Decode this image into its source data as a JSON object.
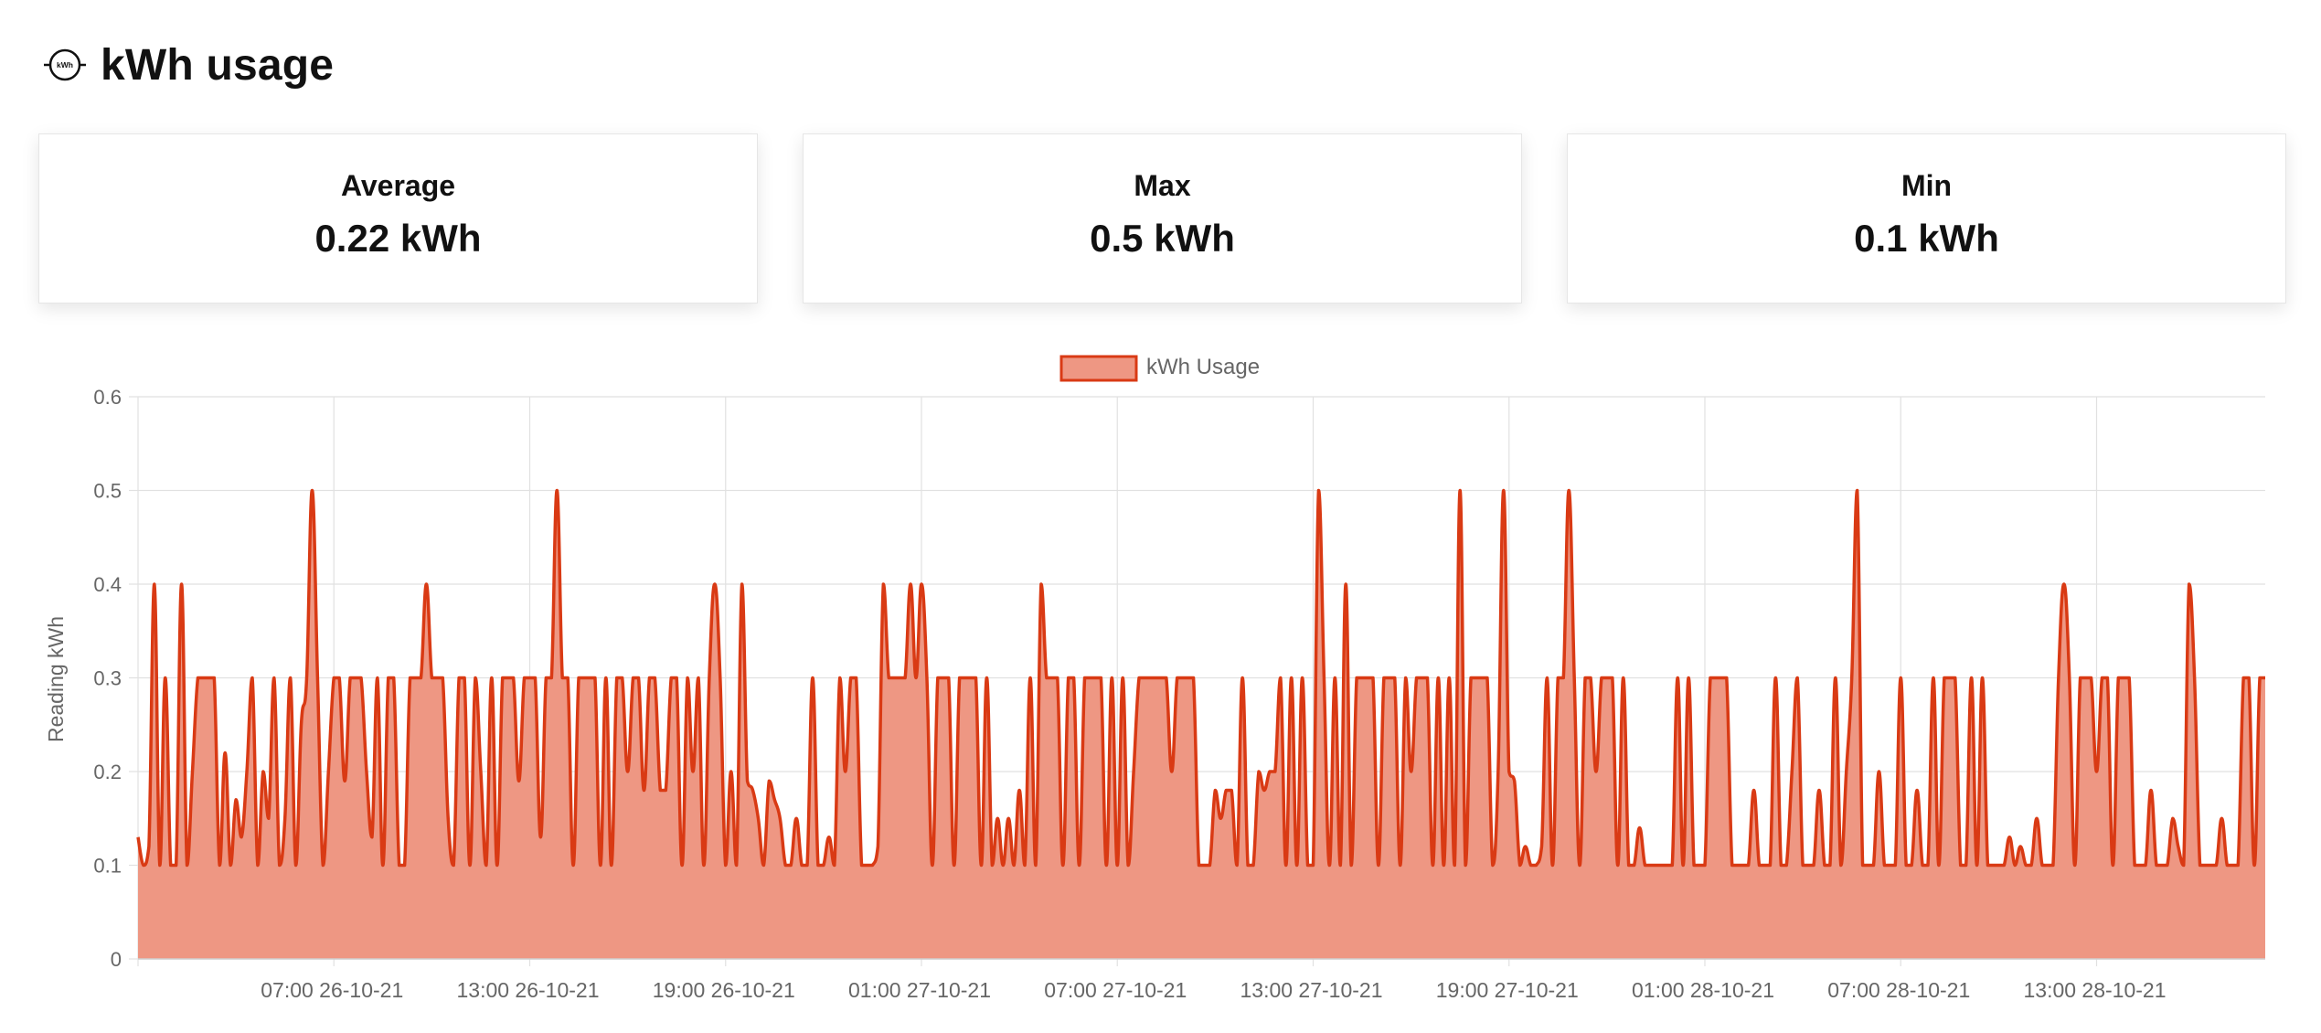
{
  "header": {
    "icon": "electric-meter-kwh-icon",
    "icon_text": "kWh",
    "title": "kWh usage"
  },
  "stats": [
    {
      "label": "Average",
      "value": "0.22 kWh"
    },
    {
      "label": "Max",
      "value": "0.5 kWh"
    },
    {
      "label": "Min",
      "value": "0.1 kWh"
    }
  ],
  "colors": {
    "line": "#d93a14",
    "fill": "#ee9783",
    "grid": "#e1e1e1",
    "text": "#666666"
  },
  "chart_data": {
    "type": "area",
    "title": "",
    "xlabel": "",
    "ylabel": "Reading kWh",
    "ylim": [
      0,
      0.6
    ],
    "yticks": [
      0,
      0.1,
      0.2,
      0.3,
      0.4,
      0.5,
      0.6
    ],
    "grid": true,
    "legend": "top-center",
    "x_start": "2021-10-26 01:00",
    "interval_minutes": 10,
    "x_tick_labels": [
      "07:00 26-10-21",
      "13:00 26-10-21",
      "19:00 26-10-21",
      "01:00 27-10-21",
      "07:00 27-10-21",
      "13:00 27-10-21",
      "19:00 27-10-21",
      "01:00 28-10-21",
      "07:00 28-10-21",
      "13:00 28-10-21"
    ],
    "series": [
      {
        "name": "kWh Usage",
        "values": [
          0.13,
          0.1,
          0.12,
          0.4,
          0.1,
          0.3,
          0.1,
          0.1,
          0.4,
          0.1,
          0.2,
          0.3,
          0.3,
          0.3,
          0.3,
          0.1,
          0.22,
          0.1,
          0.17,
          0.13,
          0.2,
          0.3,
          0.1,
          0.2,
          0.15,
          0.3,
          0.1,
          0.15,
          0.3,
          0.1,
          0.25,
          0.3,
          0.5,
          0.3,
          0.1,
          0.2,
          0.3,
          0.3,
          0.19,
          0.3,
          0.3,
          0.3,
          0.2,
          0.13,
          0.3,
          0.1,
          0.3,
          0.3,
          0.1,
          0.1,
          0.3,
          0.3,
          0.3,
          0.4,
          0.3,
          0.3,
          0.3,
          0.15,
          0.1,
          0.3,
          0.3,
          0.1,
          0.3,
          0.2,
          0.1,
          0.3,
          0.1,
          0.3,
          0.3,
          0.3,
          0.19,
          0.3,
          0.3,
          0.3,
          0.13,
          0.3,
          0.3,
          0.5,
          0.3,
          0.3,
          0.1,
          0.3,
          0.3,
          0.3,
          0.3,
          0.1,
          0.3,
          0.1,
          0.3,
          0.3,
          0.2,
          0.3,
          0.3,
          0.18,
          0.3,
          0.3,
          0.18,
          0.18,
          0.3,
          0.3,
          0.1,
          0.3,
          0.2,
          0.3,
          0.1,
          0.3,
          0.4,
          0.3,
          0.1,
          0.2,
          0.1,
          0.4,
          0.19,
          0.18,
          0.15,
          0.1,
          0.19,
          0.17,
          0.15,
          0.1,
          0.1,
          0.15,
          0.1,
          0.1,
          0.3,
          0.1,
          0.1,
          0.13,
          0.1,
          0.3,
          0.2,
          0.3,
          0.3,
          0.1,
          0.1,
          0.1,
          0.12,
          0.4,
          0.3,
          0.3,
          0.3,
          0.3,
          0.4,
          0.3,
          0.4,
          0.3,
          0.1,
          0.3,
          0.3,
          0.3,
          0.1,
          0.3,
          0.3,
          0.3,
          0.3,
          0.1,
          0.3,
          0.1,
          0.15,
          0.1,
          0.15,
          0.1,
          0.18,
          0.1,
          0.3,
          0.1,
          0.4,
          0.3,
          0.3,
          0.3,
          0.1,
          0.3,
          0.3,
          0.1,
          0.3,
          0.3,
          0.3,
          0.3,
          0.1,
          0.3,
          0.1,
          0.3,
          0.1,
          0.2,
          0.3,
          0.3,
          0.3,
          0.3,
          0.3,
          0.3,
          0.2,
          0.3,
          0.3,
          0.3,
          0.3,
          0.1,
          0.1,
          0.1,
          0.18,
          0.15,
          0.18,
          0.18,
          0.1,
          0.3,
          0.1,
          0.1,
          0.2,
          0.18,
          0.2,
          0.2,
          0.3,
          0.1,
          0.3,
          0.1,
          0.3,
          0.1,
          0.1,
          0.5,
          0.3,
          0.1,
          0.3,
          0.1,
          0.4,
          0.1,
          0.3,
          0.3,
          0.3,
          0.3,
          0.1,
          0.3,
          0.3,
          0.3,
          0.1,
          0.3,
          0.2,
          0.3,
          0.3,
          0.3,
          0.1,
          0.3,
          0.1,
          0.3,
          0.1,
          0.5,
          0.1,
          0.3,
          0.3,
          0.3,
          0.3,
          0.1,
          0.2,
          0.5,
          0.2,
          0.19,
          0.1,
          0.12,
          0.1,
          0.1,
          0.12,
          0.3,
          0.1,
          0.3,
          0.3,
          0.5,
          0.3,
          0.1,
          0.3,
          0.3,
          0.2,
          0.3,
          0.3,
          0.3,
          0.1,
          0.3,
          0.1,
          0.1,
          0.14,
          0.1,
          0.1,
          0.1,
          0.1,
          0.1,
          0.1,
          0.3,
          0.1,
          0.3,
          0.1,
          0.1,
          0.1,
          0.3,
          0.3,
          0.3,
          0.3,
          0.1,
          0.1,
          0.1,
          0.1,
          0.18,
          0.1,
          0.1,
          0.1,
          0.3,
          0.1,
          0.1,
          0.2,
          0.3,
          0.1,
          0.1,
          0.1,
          0.18,
          0.1,
          0.1,
          0.3,
          0.1,
          0.2,
          0.3,
          0.5,
          0.1,
          0.1,
          0.1,
          0.2,
          0.1,
          0.1,
          0.1,
          0.3,
          0.1,
          0.1,
          0.18,
          0.1,
          0.1,
          0.3,
          0.1,
          0.3,
          0.3,
          0.3,
          0.1,
          0.1,
          0.3,
          0.1,
          0.3,
          0.1,
          0.1,
          0.1,
          0.1,
          0.13,
          0.1,
          0.12,
          0.1,
          0.1,
          0.15,
          0.1,
          0.1,
          0.1,
          0.3,
          0.4,
          0.3,
          0.1,
          0.3,
          0.3,
          0.3,
          0.2,
          0.3,
          0.3,
          0.1,
          0.3,
          0.3,
          0.3,
          0.1,
          0.1,
          0.1,
          0.18,
          0.1,
          0.1,
          0.1,
          0.15,
          0.12,
          0.1,
          0.4,
          0.3,
          0.1,
          0.1,
          0.1,
          0.1,
          0.15,
          0.1,
          0.1,
          0.1,
          0.3,
          0.3,
          0.1,
          0.3,
          0.3
        ]
      }
    ]
  }
}
